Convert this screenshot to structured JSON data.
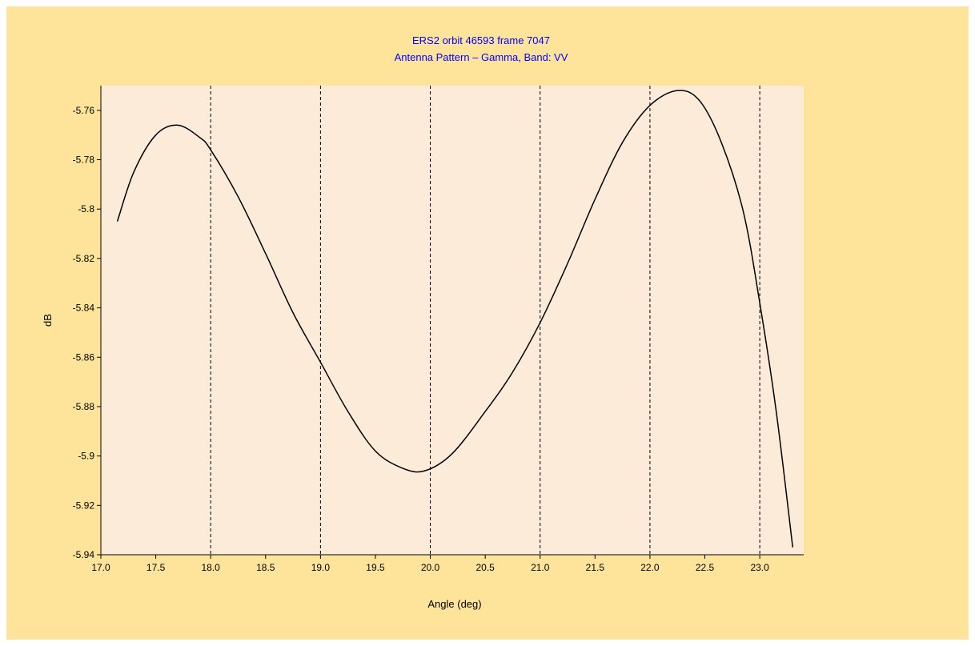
{
  "colors": {
    "background": "#fee49b",
    "plot_area": "#fbebd8",
    "title": "#0000ff",
    "line": "#000000"
  },
  "chart_data": {
    "type": "line",
    "title": "ERS2 orbit 46593 frame 7047",
    "subtitle": "Antenna Pattern – Gamma, Band: VV",
    "xlabel": "Angle (deg)",
    "ylabel": "dB",
    "xlim": [
      17.0,
      23.4
    ],
    "ylim": [
      -5.94,
      -5.75
    ],
    "x_ticks": [
      17.0,
      17.5,
      18.0,
      18.5,
      19.0,
      19.5,
      20.0,
      20.5,
      21.0,
      21.5,
      22.0,
      22.5,
      23.0
    ],
    "x_tick_labels": [
      "17.0",
      "17.5",
      "18.0",
      "18.5",
      "19.0",
      "19.5",
      "20.0",
      "20.5",
      "21.0",
      "21.5",
      "22.0",
      "22.5",
      "23.0"
    ],
    "y_ticks": [
      -5.94,
      -5.92,
      -5.9,
      -5.88,
      -5.86,
      -5.84,
      -5.82,
      -5.8,
      -5.78,
      -5.76
    ],
    "y_tick_labels": [
      "-5.94",
      "-5.92",
      "-5.9",
      "-5.88",
      "-5.86",
      "-5.84",
      "-5.82",
      "-5.8",
      "-5.78",
      "-5.76"
    ],
    "grid": "vertical dashed at integer angles",
    "gridlines_x": [
      17,
      18,
      19,
      20,
      21,
      22,
      23
    ],
    "series": [
      {
        "x": [
          17.15,
          17.3,
          17.5,
          17.7,
          17.9,
          18.0,
          18.25,
          18.5,
          18.75,
          19.0,
          19.25,
          19.5,
          19.75,
          19.95,
          20.2,
          20.5,
          20.75,
          21.0,
          21.25,
          21.5,
          21.75,
          22.0,
          22.25,
          22.45,
          22.65,
          22.85,
          23.0,
          23.15,
          23.3
        ],
        "y": [
          -5.805,
          -5.785,
          -5.77,
          -5.766,
          -5.771,
          -5.776,
          -5.795,
          -5.818,
          -5.842,
          -5.862,
          -5.882,
          -5.898,
          -5.905,
          -5.906,
          -5.899,
          -5.882,
          -5.866,
          -5.846,
          -5.822,
          -5.796,
          -5.773,
          -5.758,
          -5.752,
          -5.756,
          -5.773,
          -5.801,
          -5.838,
          -5.882,
          -5.937
        ]
      }
    ]
  }
}
